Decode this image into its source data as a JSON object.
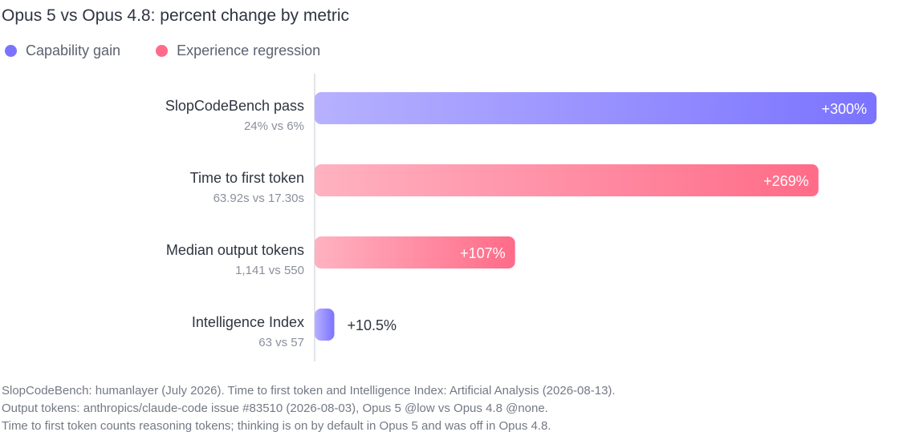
{
  "title": "Opus 5 vs Opus 4.8: percent change by metric",
  "legend": [
    {
      "label": "Capability gain",
      "color": "#7b73ff"
    },
    {
      "label": "Experience regression",
      "color": "#ff6b88"
    }
  ],
  "colors": {
    "gain_start": "#b7b1ff",
    "gain_end": "#7b73ff",
    "regression_start": "#ffb2c1",
    "regression_end": "#ff6b88",
    "axis": "#d8dbe2",
    "value_inside": "#ffffff",
    "value_outside": "#2f3440"
  },
  "chart_data": {
    "type": "bar",
    "orientation": "horizontal",
    "title": "Opus 5 vs Opus 4.8: percent change by metric",
    "xlabel": "",
    "ylabel": "",
    "xlim": [
      0,
      300
    ],
    "grid": false,
    "legend_position": "top-left",
    "categories": [
      "SlopCodeBench pass",
      "Time to first token",
      "Median output tokens",
      "Intelligence Index"
    ],
    "subtitles": [
      "24% vs 6%",
      "63.92s vs 17.30s",
      "1,141 vs 550",
      "63 vs 57"
    ],
    "values": [
      300,
      269,
      107,
      10.5
    ],
    "value_labels": [
      "+300%",
      "+269%",
      "+107%",
      "+10.5%"
    ],
    "kinds": [
      "gain",
      "regression",
      "regression",
      "gain"
    ]
  },
  "notes": [
    "SlopCodeBench: humanlayer (July 2026). Time to first token and Intelligence Index: Artificial Analysis (2026-08-13).",
    "Output tokens: anthropics/claude-code issue #83510 (2026-08-03), Opus 5 @low vs Opus 4.8 @none.",
    "Time to first token counts reasoning tokens; thinking is on by default in Opus 5 and was off in Opus 4.8."
  ]
}
